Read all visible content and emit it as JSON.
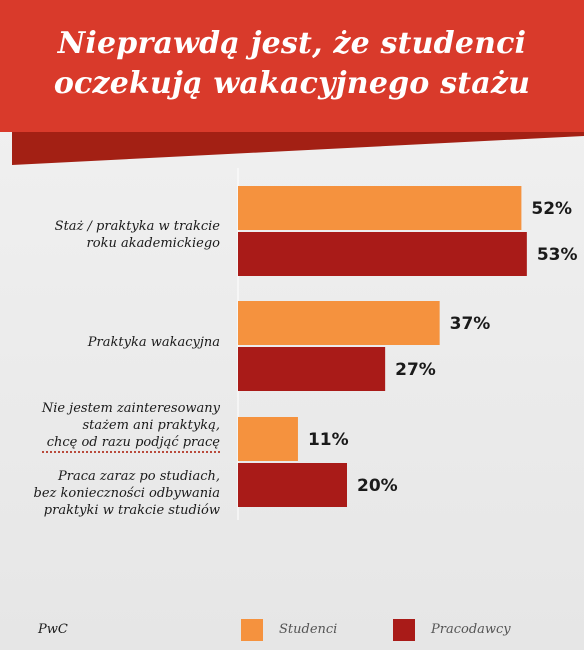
{
  "title_lines": [
    "Nieprawdą jest, że studenci",
    "oczekują wakacyjnego stażu"
  ],
  "source": "PwC",
  "colors": {
    "banner": "#d93a2b",
    "banner_shadow": "#a32014",
    "studenci": "#f5923e",
    "pracodawcy": "#a91b18"
  },
  "chart_data": {
    "type": "bar",
    "orientation": "horizontal",
    "categories": [
      "Staż / praktyka w trakcie roku akademickiego",
      "Praktyka wakacyjna",
      "Nie jestem zainteresowany stażem ani praktyką, chcę od razu podjąć pracę / Praca zaraz po studiach, bez konieczności odbywania praktyki w trakcie studiów"
    ],
    "category_label_lines": [
      [
        "Staż / praktyka w trakcie",
        "roku akademickiego"
      ],
      [
        "Praktyka wakacyjna"
      ],
      [
        "Nie jestem zainteresowany",
        "stażem ani praktyką,",
        "chcę od razu podjąć pracę"
      ],
      [
        "Praca zaraz po studiach,",
        "bez konieczności odbywania",
        "praktyki w trakcie studiów"
      ]
    ],
    "series": [
      {
        "name": "Studenci",
        "values": [
          52,
          37,
          11
        ]
      },
      {
        "name": "Pracodawcy",
        "values": [
          53,
          27,
          20
        ]
      }
    ],
    "value_labels": [
      [
        "52%",
        "37%",
        "11%"
      ],
      [
        "53%",
        "27%",
        "20%"
      ]
    ],
    "unit": "%",
    "legend_position": "bottom",
    "grid": false
  }
}
